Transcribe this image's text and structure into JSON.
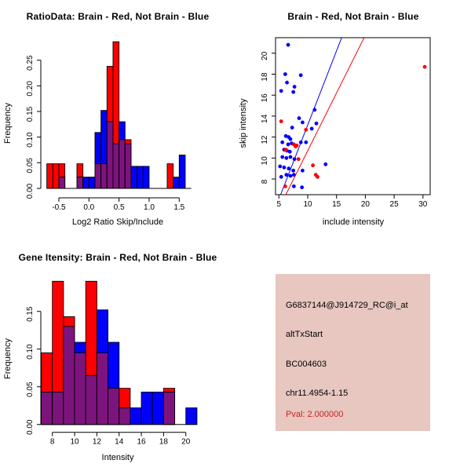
{
  "figure": {
    "background": "#ffffff",
    "panel_grid": "2x2"
  },
  "colors": {
    "brain_red": "#ff0000",
    "not_brain_blue": "#0000ff",
    "overlap_purple": "#7d147d",
    "axis_black": "#000000",
    "info_panel_bg": "#e7c7c0",
    "pval_red": "#cc2222"
  },
  "chart_data": [
    {
      "id": "ratio_histogram",
      "type": "bar",
      "title": "RatioData: Brain - Red, Not Brain - Blue",
      "xlabel": "Log2 Ratio Skip/Include",
      "ylabel": "Frequency",
      "x_ticks": {
        "values": [
          -0.5,
          0.0,
          0.5,
          1.0,
          1.5
        ],
        "labels": [
          "-0.5",
          "0.0",
          "0.5",
          "1.0",
          "1.5"
        ]
      },
      "y_ticks": {
        "values": [
          0.0,
          0.05,
          0.1,
          0.15,
          0.2,
          0.25
        ],
        "labels": [
          "0.00",
          "0.05",
          "0.10",
          "0.15",
          "0.20",
          "0.25"
        ]
      },
      "xlim": [
        -0.8,
        1.75
      ],
      "ylim": [
        0,
        0.29
      ],
      "grid": false,
      "legend": "title-encoded",
      "bins_start": -0.7,
      "bin_width": 0.1,
      "overlap_color": "#7d147d",
      "series": [
        {
          "name": "Brain",
          "color": "#ff0000",
          "values": [
            0.048,
            0.048,
            0.048,
            0,
            0,
            0.048,
            0,
            0,
            0.048,
            0.048,
            0.238,
            0.286,
            0.095,
            0.095,
            0,
            0,
            0,
            0,
            0,
            0,
            0.048,
            0,
            0,
            0
          ]
        },
        {
          "name": "Not Brain",
          "color": "#0000ff",
          "values": [
            0,
            0,
            0.022,
            0,
            0,
            0.022,
            0.022,
            0.022,
            0.109,
            0.152,
            0.13,
            0.087,
            0.13,
            0.087,
            0.043,
            0.043,
            0.043,
            0,
            0,
            0,
            0,
            0.022,
            0.065,
            0
          ]
        }
      ]
    },
    {
      "id": "intensity_scatter",
      "type": "scatter",
      "title": "Brain - Red, Not Brain - Blue",
      "xlabel": "include intensity",
      "ylabel": "skip intensity",
      "x_ticks": {
        "values": [
          5,
          10,
          15,
          20,
          25,
          30
        ],
        "labels": [
          "5",
          "10",
          "15",
          "20",
          "25",
          "30"
        ]
      },
      "y_ticks": {
        "values": [
          8,
          10,
          12,
          14,
          16,
          18,
          20
        ],
        "labels": [
          "8",
          "10",
          "12",
          "14",
          "16",
          "18",
          "20"
        ]
      },
      "xlim": [
        4.4,
        31.3
      ],
      "ylim": [
        6.5,
        21.5
      ],
      "grid": false,
      "series": [
        {
          "name": "Not Brain",
          "color": "#0000ff",
          "points": [
            [
              6.6,
              20.8
            ],
            [
              6.1,
              18.0
            ],
            [
              8.8,
              17.9
            ],
            [
              6.4,
              17.2
            ],
            [
              7.7,
              16.8
            ],
            [
              5.4,
              16.4
            ],
            [
              7.5,
              16.3
            ],
            [
              11.2,
              14.6
            ],
            [
              8.5,
              13.8
            ],
            [
              9.1,
              13.4
            ],
            [
              11.5,
              13.3
            ],
            [
              7.3,
              12.9
            ],
            [
              10.7,
              12.8
            ],
            [
              6.2,
              12.1
            ],
            [
              6.7,
              12.0
            ],
            [
              7.0,
              11.8
            ],
            [
              5.6,
              11.5
            ],
            [
              8.8,
              11.5
            ],
            [
              9.7,
              11.5
            ],
            [
              7.2,
              11.4
            ],
            [
              6.6,
              11.3
            ],
            [
              5.9,
              10.8
            ],
            [
              6.4,
              10.7
            ],
            [
              6.9,
              10.6
            ],
            [
              5.6,
              10.1
            ],
            [
              7.0,
              10.1
            ],
            [
              6.3,
              10.0
            ],
            [
              7.7,
              9.9
            ],
            [
              13.1,
              9.4
            ],
            [
              5.2,
              9.2
            ],
            [
              5.9,
              9.1
            ],
            [
              6.7,
              9.0
            ],
            [
              9.1,
              8.8
            ],
            [
              7.5,
              8.8
            ],
            [
              6.3,
              8.4
            ],
            [
              7.6,
              8.4
            ],
            [
              7.0,
              8.3
            ],
            [
              5.4,
              8.2
            ],
            [
              7.6,
              7.3
            ],
            [
              9.0,
              7.2
            ]
          ]
        },
        {
          "name": "Brain",
          "color": "#ff0000",
          "points": [
            [
              30.3,
              18.7
            ],
            [
              5.4,
              13.5
            ],
            [
              9.7,
              12.7
            ],
            [
              7.6,
              11.3
            ],
            [
              8.1,
              11.2
            ],
            [
              7.9,
              11.1
            ],
            [
              6.2,
              10.8
            ],
            [
              8.4,
              9.9
            ],
            [
              10.9,
              9.3
            ],
            [
              11.4,
              8.4
            ],
            [
              11.7,
              8.2
            ],
            [
              6.1,
              7.3
            ]
          ]
        }
      ],
      "lines": [
        {
          "name": "not-brain-fit",
          "color": "#0000ff",
          "from": [
            5.3,
            6.5
          ],
          "to": [
            15.9,
            21.5
          ]
        },
        {
          "name": "brain-fit",
          "color": "#ff0000",
          "from": [
            6.2,
            6.5
          ],
          "to": [
            19.8,
            21.5
          ]
        }
      ]
    },
    {
      "id": "gene_intensity_histogram",
      "type": "bar",
      "title": "Gene Itensity: Brain - Red, Not Brain - Blue",
      "xlabel": "Intensity",
      "ylabel": "Frequency",
      "x_ticks": {
        "values": [
          8,
          10,
          12,
          14,
          16,
          18,
          20
        ],
        "labels": [
          "8",
          "10",
          "12",
          "14",
          "16",
          "18",
          "20"
        ]
      },
      "y_ticks": {
        "values": [
          0.0,
          0.05,
          0.1,
          0.15
        ],
        "labels": [
          "0.00",
          "0.05",
          "0.10",
          "0.15"
        ]
      },
      "xlim": [
        6.8,
        21.2
      ],
      "ylim": [
        0,
        0.195
      ],
      "grid": false,
      "bins_start": 7,
      "bin_width": 1,
      "overlap_color": "#7d147d",
      "series": [
        {
          "name": "Brain",
          "color": "#ff0000",
          "values": [
            0.095,
            0.19,
            0.143,
            0.095,
            0.19,
            0.095,
            0.048,
            0.048,
            0,
            0,
            0,
            0.048,
            0,
            0
          ]
        },
        {
          "name": "Not Brain",
          "color": "#0000ff",
          "values": [
            0.043,
            0.043,
            0.13,
            0.109,
            0.065,
            0.152,
            0.109,
            0.022,
            0.022,
            0.043,
            0.043,
            0.043,
            0,
            0.022
          ]
        }
      ]
    }
  ],
  "info_panel": {
    "background": "#e7c7c0",
    "lines": [
      {
        "text": "G6837144@J914729_RC@i_at",
        "color": "#000000"
      },
      {
        "text": "altTxStart",
        "color": "#000000"
      },
      {
        "text": "BC004603",
        "color": "#000000"
      },
      {
        "text": "chr11.4954-1.15",
        "color": "#000000"
      },
      {
        "text": "Pval: 2.000000",
        "color": "#cc2222"
      }
    ]
  }
}
